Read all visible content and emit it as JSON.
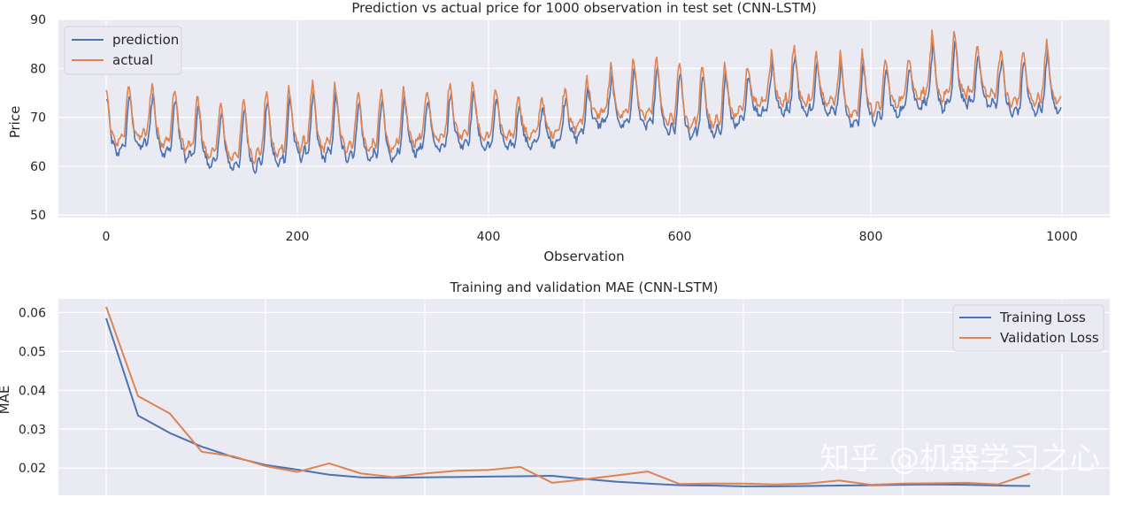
{
  "chart_data": [
    {
      "type": "line",
      "title": "Prediction vs actual price for 1000 observation in test set (CNN-LSTM)",
      "xlabel": "Observation",
      "ylabel": "Price",
      "xlim": [
        -50,
        1050
      ],
      "ylim": [
        49.5,
        90
      ],
      "xticks": [
        0,
        200,
        400,
        600,
        800,
        1000
      ],
      "yticks": [
        50,
        60,
        70,
        80,
        90
      ],
      "grid": true,
      "legend": "upper-left",
      "trend": {
        "x": [
          0,
          100,
          200,
          300,
          400,
          500,
          600,
          700,
          800,
          900,
          1000
        ],
        "center": [
          67,
          66,
          65,
          68,
          67,
          71,
          72,
          74,
          75,
          76,
          77
        ],
        "amplitude": [
          8,
          8,
          8,
          7,
          7,
          7,
          8,
          8,
          8,
          8,
          8
        ]
      },
      "series": [
        {
          "name": "prediction",
          "color": "#4c72b0",
          "offset": -1.2,
          "lag": 1
        },
        {
          "name": "actual",
          "color": "#dd8452",
          "offset": 0.8,
          "lag": 0
        }
      ],
      "n_points": 1000
    },
    {
      "type": "line",
      "title": "Training and validation MAE (CNN-LSTM)",
      "xlabel": "",
      "ylabel": "MAE",
      "xlim": [
        -1.5,
        31.5
      ],
      "ylim": [
        0.013,
        0.0635
      ],
      "yticks": [
        0.02,
        0.03,
        0.04,
        0.05,
        0.06
      ],
      "ytick_labels": [
        "0.02",
        "0.03",
        "0.04",
        "0.05",
        "0.06"
      ],
      "grid": true,
      "legend": "upper-right",
      "x": [
        0,
        1,
        2,
        3,
        4,
        5,
        6,
        7,
        8,
        9,
        10,
        11,
        12,
        13,
        14,
        15,
        16,
        17,
        18,
        19,
        20,
        21,
        22,
        23,
        24,
        25,
        26,
        27,
        28,
        29
      ],
      "series": [
        {
          "name": "Training Loss",
          "color": "#4c72b0",
          "values": [
            0.0585,
            0.0335,
            0.029,
            0.0255,
            0.0228,
            0.0208,
            0.0196,
            0.0183,
            0.0176,
            0.0175,
            0.0176,
            0.0177,
            0.0178,
            0.0179,
            0.018,
            0.0172,
            0.0165,
            0.016,
            0.0156,
            0.0155,
            0.0153,
            0.0153,
            0.0154,
            0.0155,
            0.0156,
            0.0157,
            0.0158,
            0.0157,
            0.0155,
            0.0154
          ]
        },
        {
          "name": "Validation Loss",
          "color": "#dd8452",
          "values": [
            0.0615,
            0.0385,
            0.034,
            0.0242,
            0.023,
            0.0205,
            0.019,
            0.0212,
            0.0186,
            0.0177,
            0.0186,
            0.0193,
            0.0195,
            0.0203,
            0.0162,
            0.0171,
            0.0181,
            0.0191,
            0.0159,
            0.016,
            0.016,
            0.0158,
            0.016,
            0.0168,
            0.0157,
            0.016,
            0.0161,
            0.0162,
            0.0158,
            0.0186
          ]
        }
      ]
    }
  ],
  "watermark": "知乎 @机器学习之心"
}
